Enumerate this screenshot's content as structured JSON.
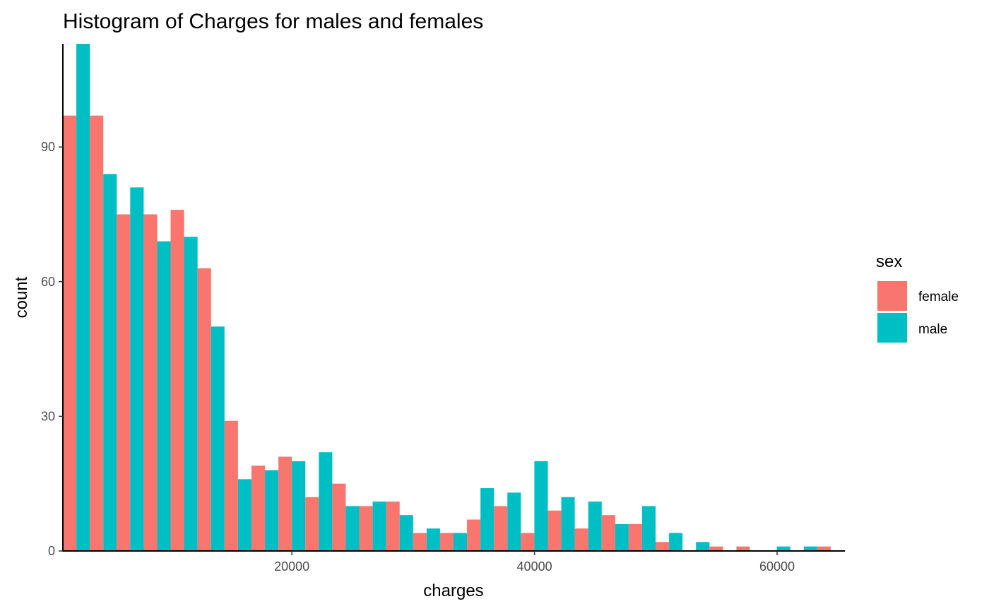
{
  "chart_data": {
    "type": "bar",
    "title": "Histogram of Charges for males and females",
    "xlabel": "charges",
    "ylabel": "count",
    "xlim": [
      1122,
      65590
    ],
    "ylim": [
      0,
      113
    ],
    "xticks": [
      20000,
      40000,
      60000
    ],
    "yticks": [
      0,
      30,
      60,
      90
    ],
    "bin_width": 2221,
    "bin_starts": [
      1122,
      3343,
      5564,
      7785,
      10006,
      12227,
      14448,
      16669,
      18890,
      21111,
      23332,
      25553,
      27774,
      29995,
      32216,
      34437,
      36658,
      38879,
      41100,
      43321,
      45542,
      47763,
      49984,
      52205,
      54426,
      56647,
      58868,
      61089,
      63310
    ],
    "legend_title": "sex",
    "legend_position": "right",
    "grid": false,
    "series": [
      {
        "name": "female",
        "color": "#F8766D",
        "values": [
          97,
          97,
          75,
          75,
          76,
          63,
          29,
          19,
          21,
          12,
          15,
          10,
          11,
          4,
          4,
          7,
          10,
          4,
          9,
          5,
          8,
          6,
          2,
          0,
          1,
          1,
          0,
          0,
          1
        ]
      },
      {
        "name": "male",
        "color": "#00BFC4",
        "values": [
          113,
          84,
          81,
          69,
          70,
          50,
          16,
          18,
          20,
          22,
          10,
          11,
          8,
          5,
          4,
          14,
          13,
          20,
          12,
          11,
          6,
          10,
          4,
          2,
          0,
          0,
          1,
          1,
          0
        ]
      }
    ]
  }
}
